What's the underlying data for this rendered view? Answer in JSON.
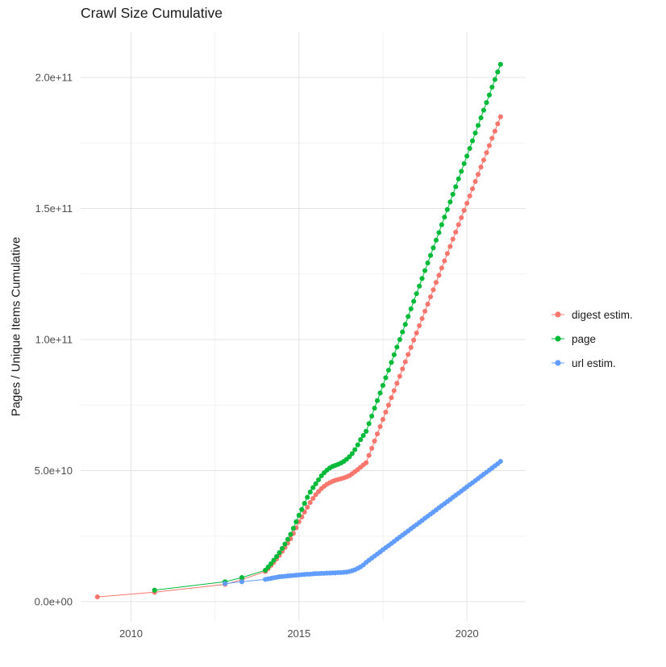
{
  "chart_data": {
    "type": "scatter",
    "title": "Crawl Size Cumulative",
    "xlabel": "",
    "ylabel": "Pages / Unique Items Cumulative",
    "grid": true,
    "legend_position": "right",
    "x_range": [
      2008.5,
      2021.75
    ],
    "y_range_e9": [
      0,
      217
    ],
    "y_unit": "1e9",
    "x_ticks": {
      "values": [
        2010,
        2015,
        2020
      ],
      "labels": [
        "2010",
        "2015",
        "2020"
      ]
    },
    "y_ticks": {
      "values_e9": [
        0,
        50,
        100,
        150,
        200
      ],
      "labels": [
        "0.0e+00",
        "5.0e+10",
        "1.0e+11",
        "1.5e+11",
        "2.0e+11"
      ]
    },
    "monthly_x_start": 2014.0,
    "monthly_x_step_years": 0.0833333,
    "series": [
      {
        "name": "digest estim.",
        "color": "#F8766D",
        "early": [
          [
            2009.0,
            1.8
          ],
          [
            2010.7,
            3.6
          ],
          [
            2012.8,
            6.6
          ],
          [
            2013.3,
            8.4
          ]
        ],
        "monthly_y_e9": [
          11.5,
          12.6,
          13.8,
          15.0,
          16.3,
          17.7,
          19.2,
          20.7,
          22.3,
          24.0,
          26.0,
          28.2,
          30.5,
          32.3,
          34.2,
          36.0,
          37.8,
          39.4,
          40.8,
          42.0,
          43.1,
          44.0,
          44.8,
          45.4,
          45.9,
          46.3,
          46.6,
          46.9,
          47.2,
          47.6,
          48.1,
          48.8,
          49.6,
          50.4,
          51.3,
          52.2,
          53.0,
          55.8,
          58.5,
          61.3,
          64.0,
          66.8,
          69.5,
          72.3,
          75.0,
          77.8,
          80.5,
          83.3,
          86.0,
          88.8,
          91.5,
          94.3,
          97.0,
          99.8,
          102.5,
          105.3,
          108.0,
          110.8,
          113.5,
          116.3,
          119.0,
          121.8,
          124.5,
          127.3,
          130.0,
          132.8,
          135.5,
          138.3,
          141.0,
          143.8,
          146.5,
          149.3,
          152.0,
          154.8,
          157.5,
          160.3,
          163.0,
          165.8,
          168.5,
          171.3,
          174.0,
          176.8,
          179.5,
          182.3,
          185.0
        ]
      },
      {
        "name": "page",
        "color": "#00BA38",
        "early": [
          [
            2010.7,
            4.4
          ],
          [
            2012.8,
            7.6
          ],
          [
            2013.3,
            9.2
          ]
        ],
        "monthly_y_e9": [
          12.0,
          13.2,
          14.5,
          15.8,
          17.2,
          18.7,
          20.3,
          22.0,
          23.8,
          25.7,
          28.0,
          30.5,
          33.0,
          35.2,
          37.5,
          39.8,
          41.8,
          43.5,
          45.0,
          46.5,
          48.0,
          49.2,
          50.2,
          51.0,
          51.6,
          52.0,
          52.4,
          52.9,
          53.5,
          54.3,
          55.3,
          56.5,
          58.0,
          59.8,
          61.8,
          63.4,
          65.0,
          67.9,
          70.8,
          73.8,
          76.7,
          79.6,
          82.5,
          85.4,
          88.3,
          91.3,
          94.2,
          97.1,
          100.0,
          102.9,
          105.8,
          108.8,
          111.7,
          114.6,
          117.5,
          120.4,
          123.3,
          126.3,
          129.2,
          132.1,
          135.0,
          137.9,
          140.8,
          143.8,
          146.7,
          149.6,
          152.5,
          155.4,
          158.3,
          161.3,
          164.2,
          167.1,
          170.0,
          172.9,
          175.8,
          178.8,
          181.7,
          184.6,
          187.5,
          190.4,
          193.3,
          196.3,
          199.2,
          202.1,
          205.0
        ]
      },
      {
        "name": "url estim.",
        "color": "#619CFF",
        "early": [
          [
            2012.8,
            6.9
          ],
          [
            2013.3,
            7.6
          ]
        ],
        "monthly_y_e9": [
          8.5,
          8.7,
          8.9,
          9.1,
          9.3,
          9.5,
          9.6,
          9.7,
          9.8,
          9.9,
          10.0,
          10.1,
          10.2,
          10.3,
          10.4,
          10.5,
          10.5,
          10.6,
          10.7,
          10.7,
          10.8,
          10.8,
          10.9,
          10.9,
          11.0,
          11.0,
          11.1,
          11.1,
          11.2,
          11.3,
          11.5,
          11.8,
          12.2,
          12.7,
          13.3,
          14.0,
          15.0,
          15.8,
          16.6,
          17.4,
          18.2,
          19.0,
          19.8,
          20.6,
          21.4,
          22.2,
          23.0,
          23.8,
          24.6,
          25.4,
          26.2,
          27.0,
          27.8,
          28.6,
          29.4,
          30.2,
          31.0,
          31.8,
          32.6,
          33.4,
          34.2,
          35.0,
          35.8,
          36.6,
          37.4,
          38.2,
          39.0,
          39.8,
          40.6,
          41.4,
          42.2,
          43.0,
          43.8,
          44.6,
          45.4,
          46.2,
          47.0,
          47.8,
          48.6,
          49.4,
          50.2,
          51.0,
          51.8,
          52.6,
          53.5
        ]
      }
    ]
  }
}
